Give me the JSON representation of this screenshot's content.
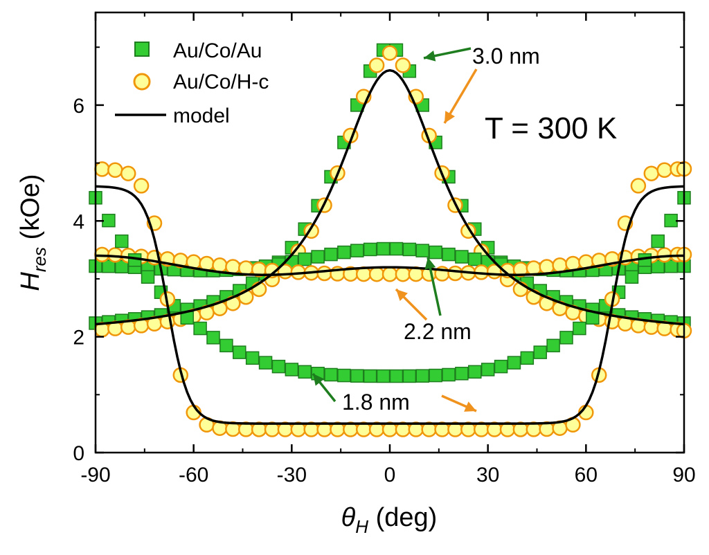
{
  "chart_data": {
    "type": "scatter",
    "xlabel": "θ_H (deg)",
    "xlabel_main": "θ",
    "xlabel_sub": "H",
    "xlabel_unit": " (deg)",
    "ylabel": "H_res (kOe)",
    "ylabel_main": "H",
    "ylabel_sub": "res",
    "ylabel_unit": " (kOe)",
    "xlim": [
      -90,
      90
    ],
    "ylim": [
      0,
      7.6
    ],
    "x_ticks": [
      -90,
      -60,
      -30,
      0,
      30,
      60,
      90
    ],
    "y_ticks": [
      0,
      2,
      4,
      6
    ],
    "legend_position": "top-left",
    "legend": [
      {
        "label": "Au/Co/Au",
        "marker": "square"
      },
      {
        "label": "Au/Co/H-c",
        "marker": "circle"
      },
      {
        "label": "model",
        "marker": "line"
      }
    ],
    "colors": {
      "square_fill": "#33cc33",
      "square_edge": "#1e7d1e",
      "circle_fill": "#ffff99",
      "circle_edge": "#f0960a",
      "model_line": "#000000",
      "green_arrow": "#1e7d1e",
      "orange_arrow": "#f0921e"
    },
    "annotations": [
      {
        "text": "3.0 nm"
      },
      {
        "text": "2.2 nm"
      },
      {
        "text": "1.8 nm"
      },
      {
        "text": "T = 300 K"
      }
    ],
    "series": [
      {
        "thickness": "3.0 nm",
        "sample": "Au/Co/Au",
        "marker": "square",
        "shape": "peak",
        "params": {
          "base": 2.0,
          "amplitude": 5.0,
          "width": 20
        }
      },
      {
        "thickness": "3.0 nm",
        "sample": "Au/Co/H-c",
        "marker": "circle",
        "shape": "peak",
        "params": {
          "base": 1.9,
          "amplitude": 5.0,
          "width": 19
        }
      },
      {
        "thickness": "3.0 nm",
        "sample": "model",
        "marker": "line",
        "shape": "peak",
        "params": {
          "base": 2.0,
          "amplitude": 4.6,
          "width": 20
        }
      },
      {
        "thickness": "2.2 nm",
        "sample": "Au/Co/Au",
        "marker": "square",
        "shape": "dome",
        "params": {
          "center": 3.52,
          "edge": 3.22,
          "min": 3.02
        }
      },
      {
        "thickness": "2.2 nm",
        "sample": "Au/Co/H-c",
        "marker": "circle",
        "shape": "dome",
        "params": {
          "center": 3.08,
          "edge": 3.42,
          "min": 3.02
        }
      },
      {
        "thickness": "2.2 nm",
        "sample": "model",
        "marker": "line",
        "shape": "dome",
        "params": {
          "center": 3.2,
          "edge": 3.4,
          "min": 2.98
        }
      },
      {
        "thickness": "1.8 nm",
        "sample": "Au/Co/Au",
        "marker": "square",
        "shape": "well",
        "params": {
          "min": 1.32,
          "max": 4.4,
          "power": 3
        }
      },
      {
        "thickness": "1.8 nm",
        "sample": "Au/Co/H-c",
        "marker": "circle",
        "shape": "step",
        "params": {
          "min": 0.4,
          "max": 4.9,
          "edge": 68,
          "steep": 3
        }
      },
      {
        "thickness": "1.8 nm",
        "sample": "model",
        "marker": "line",
        "shape": "step",
        "params": {
          "min": 0.5,
          "max": 4.6,
          "edge": 68,
          "steep": 3.2
        }
      }
    ]
  }
}
